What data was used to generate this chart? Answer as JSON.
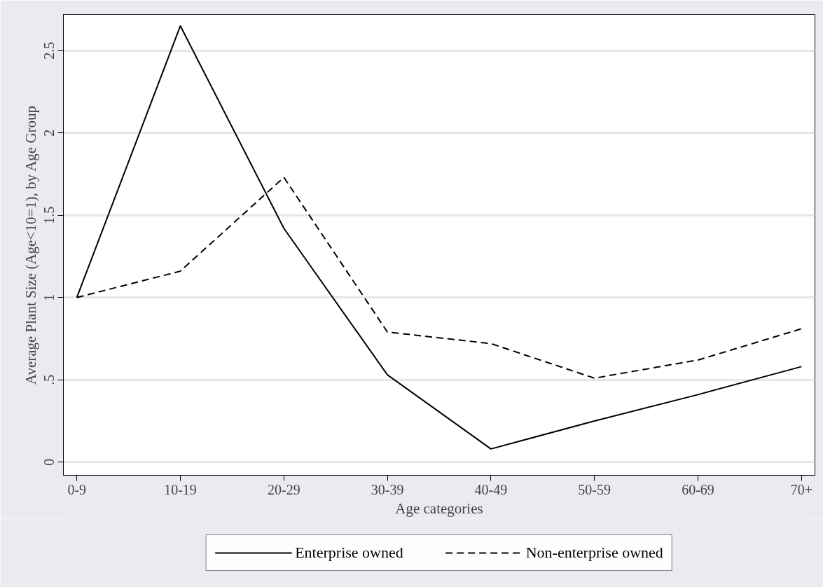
{
  "chart_data": {
    "type": "line",
    "xlabel": "Age categories",
    "ylabel": "Average Plant Size (Age<10=1), by Age Group",
    "categories": [
      "0-9",
      "10-19",
      "20-29",
      "30-39",
      "40-49",
      "50-59",
      "60-69",
      "70+"
    ],
    "series": [
      {
        "name": "Enterprise owned",
        "color": "#000000",
        "line_style": "solid",
        "values": [
          1.0,
          2.65,
          1.42,
          0.53,
          0.08,
          0.25,
          0.41,
          0.58
        ]
      },
      {
        "name": "Non-enterprise owned",
        "color": "#000000",
        "line_style": "dashed",
        "values": [
          1.0,
          1.16,
          1.73,
          0.79,
          0.72,
          0.51,
          0.62,
          0.81
        ]
      }
    ],
    "ylim": [
      -0.08,
      2.72
    ],
    "yticks": [
      0,
      {
        "value": 0.5,
        "label": ".5"
      },
      1,
      1.5,
      2,
      2.5
    ],
    "grid": "y",
    "legend": "bottom",
    "marker": "none"
  }
}
